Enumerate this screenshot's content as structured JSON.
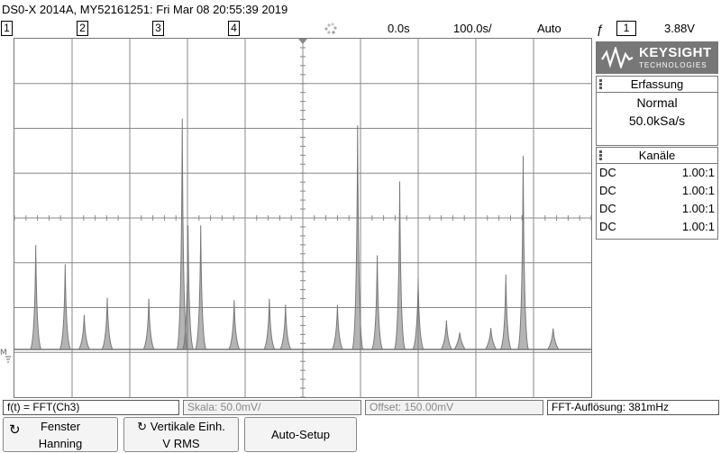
{
  "title": "DS0-X 2014A, MY52161251: Fri Mar 08 20:55:39 2019",
  "status": {
    "channels": [
      "1",
      "2",
      "3",
      "4"
    ],
    "time_offset": "0.0s",
    "time_scale": "100.0s/",
    "mode": "Auto",
    "trigger_channel": "1",
    "trigger_level": "3.88V"
  },
  "brand": {
    "name": "KEYSIGHT",
    "sub": "TECHNOLOGIES"
  },
  "acquisition": {
    "title": "Erfassung",
    "mode": "Normal",
    "rate": "50.0kSa/s"
  },
  "channels_panel": {
    "title": "Kanäle",
    "rows": [
      {
        "coupling": "DC",
        "probe": "1.00:1"
      },
      {
        "coupling": "DC",
        "probe": "1.00:1"
      },
      {
        "coupling": "DC",
        "probe": "1.00:1"
      },
      {
        "coupling": "DC",
        "probe": "1.00:1"
      }
    ]
  },
  "function_bar": {
    "function": "f(t) = FFT(Ch3)",
    "scale": "Skala: 50.0mV/",
    "offset": "Offset: 150.00mV",
    "resolution": "FFT-Auflösung: 381mHz"
  },
  "softkeys": {
    "window_label": "Fenster",
    "window_value": "Hanning",
    "vert_label": "Vertikale Einh.",
    "vert_value": "V RMS",
    "autosetup": "Auto-Setup"
  },
  "colors": {
    "trace": "#777777",
    "grid": "#888888"
  },
  "chart_data": {
    "type": "line",
    "title": "",
    "xlabel": "",
    "ylabel": "",
    "description_units": "divisions above ground marker (grid has 10 x 8 divisions)",
    "x_div": [
      0.37,
      0.88,
      1.21,
      1.61,
      2.33,
      2.91,
      3.01,
      3.23,
      3.81,
      4.42,
      4.7,
      5.6,
      5.95,
      6.29,
      6.68,
      7.0,
      7.49,
      7.72,
      8.26,
      8.52,
      8.82,
      9.34
    ],
    "peak_div": [
      2.43,
      2.0,
      0.87,
      1.25,
      1.23,
      5.25,
      2.87,
      2.87,
      1.2,
      1.23,
      1.1,
      1.1,
      5.1,
      2.2,
      3.85,
      1.68,
      0.75,
      0.48,
      0.58,
      1.77,
      4.42,
      0.57
    ],
    "baseline_div": 0.1
  }
}
